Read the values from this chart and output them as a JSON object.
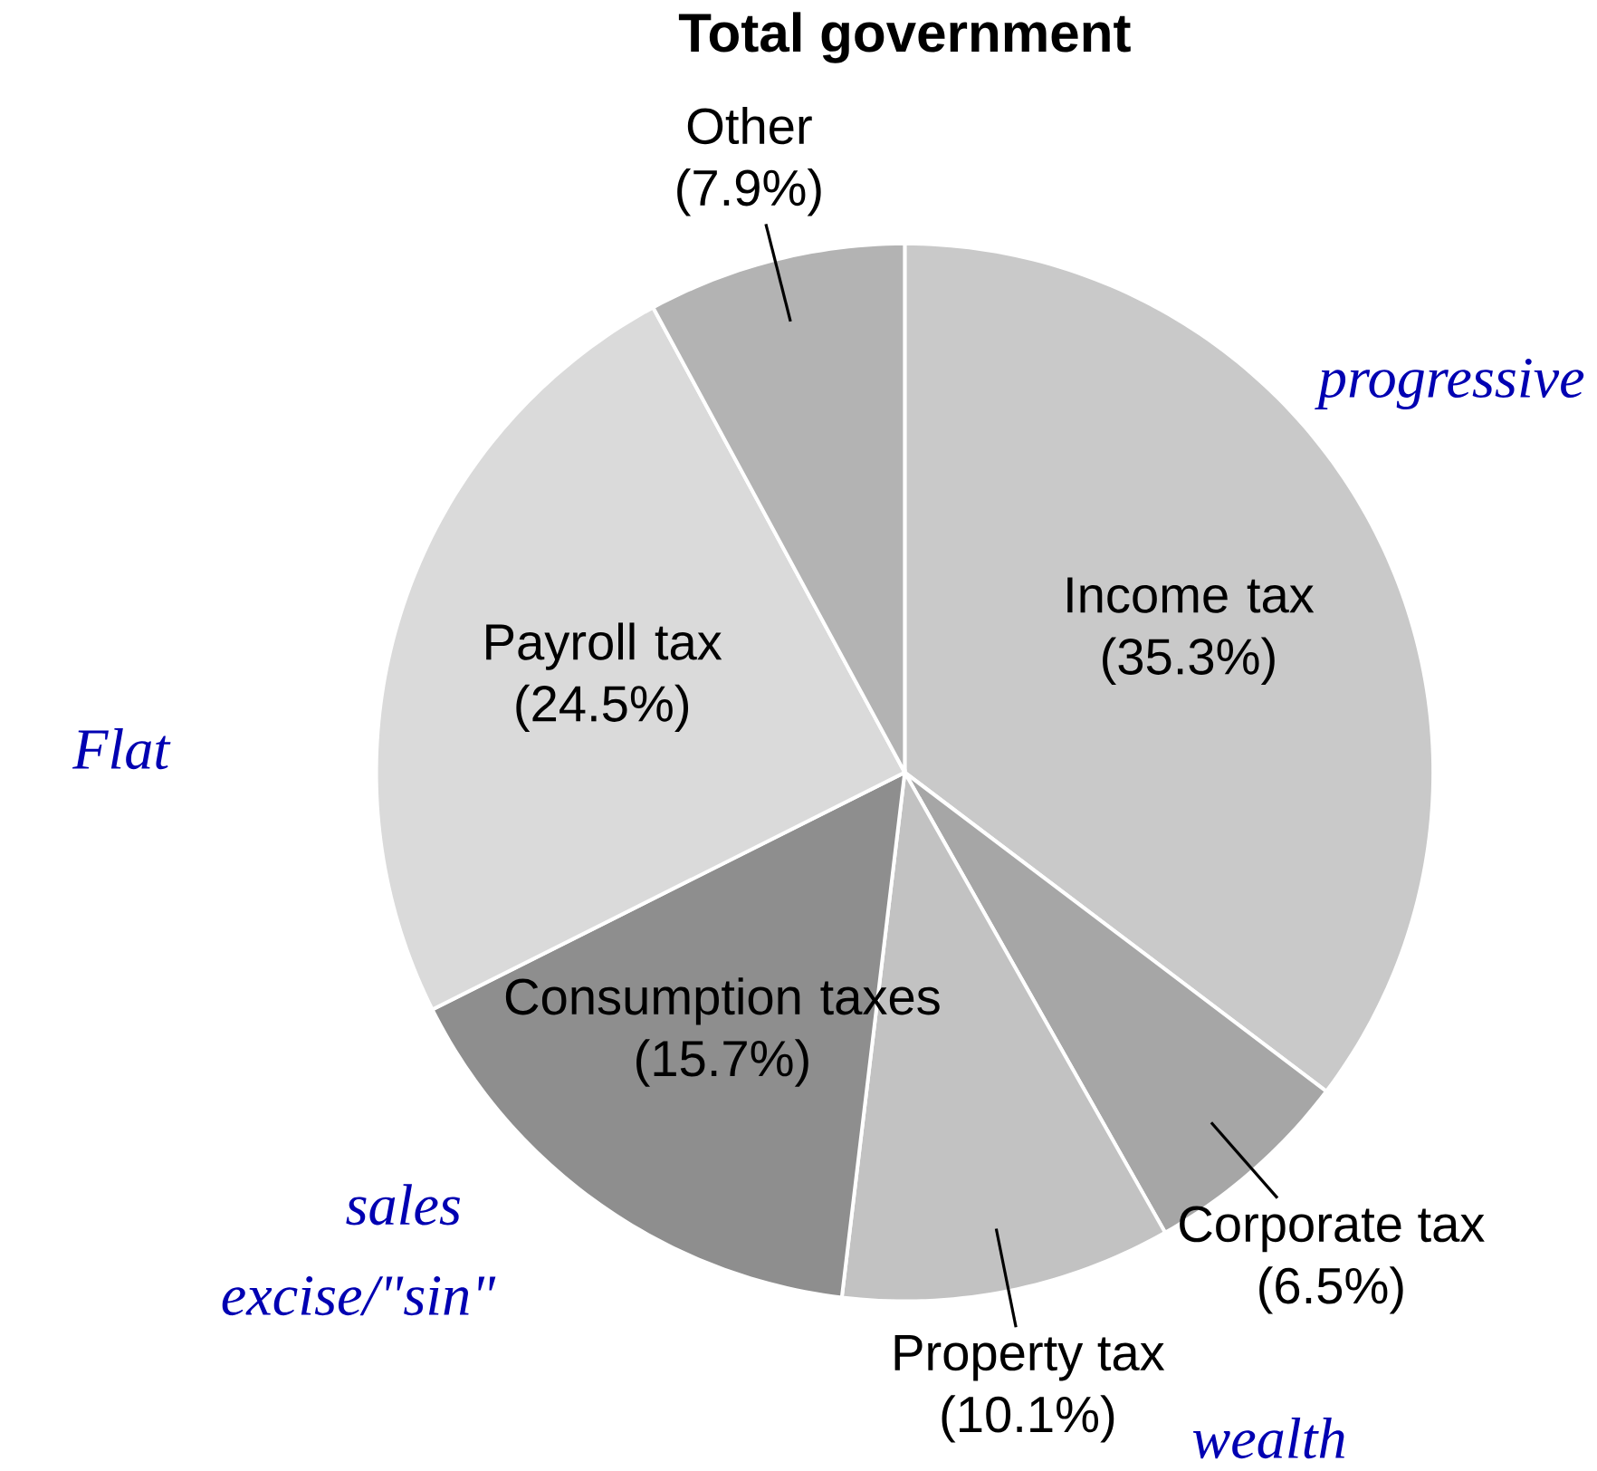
{
  "chart_data": {
    "type": "pie",
    "title": "Total government",
    "categories": [
      "Income tax",
      "Corporate tax",
      "Property tax",
      "Consumption taxes",
      "Payroll tax",
      "Other"
    ],
    "values": [
      35.3,
      6.5,
      10.1,
      15.7,
      24.5,
      7.9
    ],
    "value_labels": [
      "(35.3%)",
      "(6.5%)",
      "(10.1%)",
      "(15.7%)",
      "(24.5%)",
      "(7.9%)"
    ],
    "colors": [
      "#c9c9c9",
      "#a6a6a6",
      "#c2c2c2",
      "#8e8e8e",
      "#dadada",
      "#b3b3b3"
    ],
    "annotations": [
      "progressive",
      "Flat",
      "sales",
      "excise/\"sin\"",
      "wealth"
    ]
  }
}
